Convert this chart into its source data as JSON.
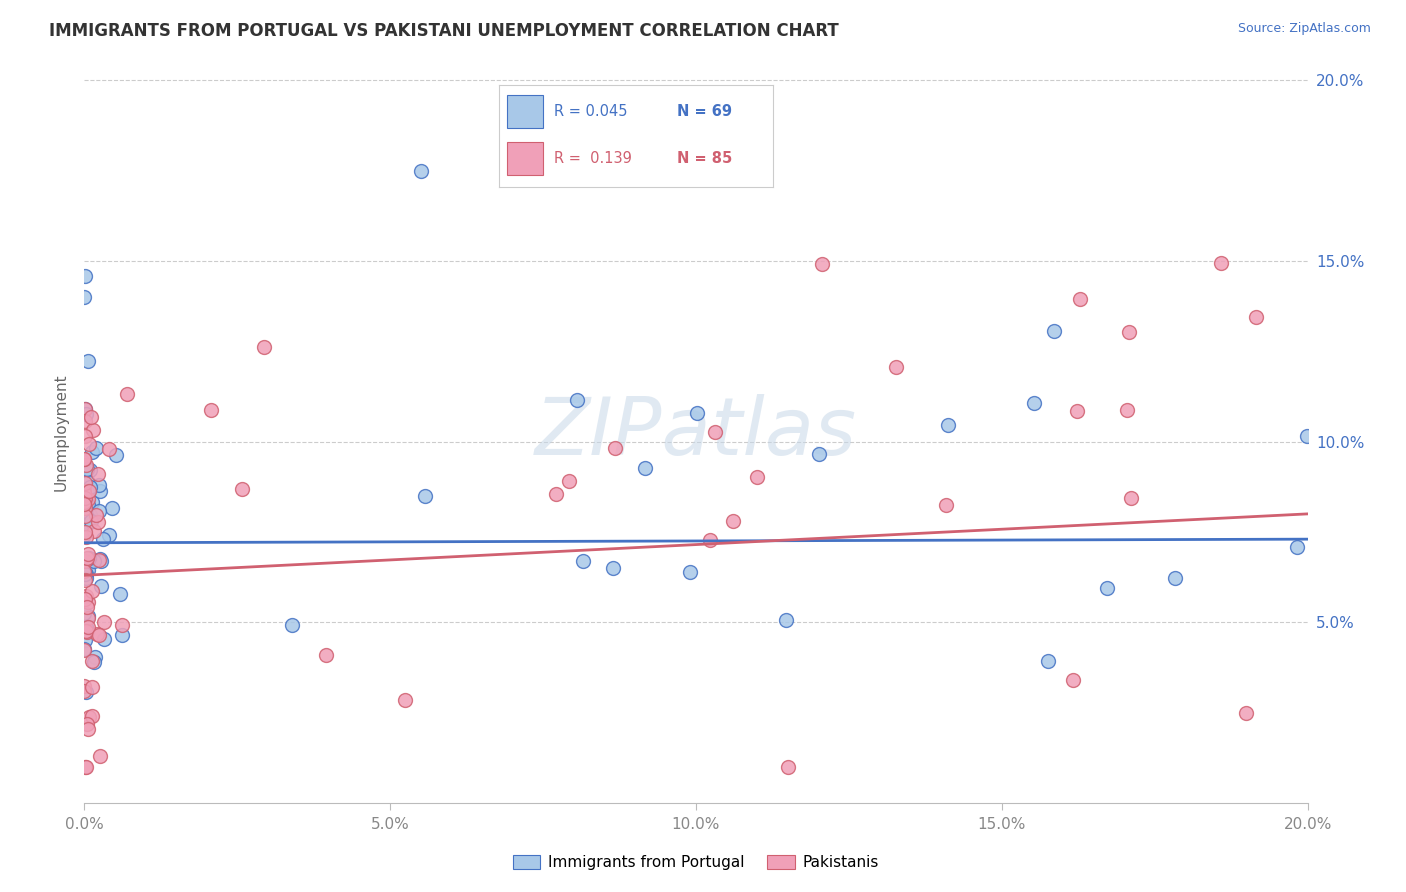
{
  "title": "IMMIGRANTS FROM PORTUGAL VS PAKISTANI UNEMPLOYMENT CORRELATION CHART",
  "source_text": "Source: ZipAtlas.com",
  "ylabel": "Unemployment",
  "xlim": [
    0.0,
    0.2
  ],
  "ylim": [
    0.0,
    0.205
  ],
  "yticks": [
    0.05,
    0.1,
    0.15,
    0.2
  ],
  "ytick_labels": [
    "5.0%",
    "10.0%",
    "15.0%",
    "20.0%"
  ],
  "xticks": [
    0.0,
    0.05,
    0.1,
    0.15,
    0.2
  ],
  "xtick_labels": [
    "0.0%",
    "5.0%",
    "10.0%",
    "15.0%",
    "20.0%"
  ],
  "blue_color": "#A8C8E8",
  "pink_color": "#F0A0B8",
  "blue_line_color": "#4472C4",
  "pink_line_color": "#D06070",
  "tick_color": "#5588AA",
  "legend_label_blue": "Immigrants from Portugal",
  "legend_label_pink": "Pakistanis",
  "watermark": "ZIPatlas",
  "watermark_color": "#C8D8E8"
}
